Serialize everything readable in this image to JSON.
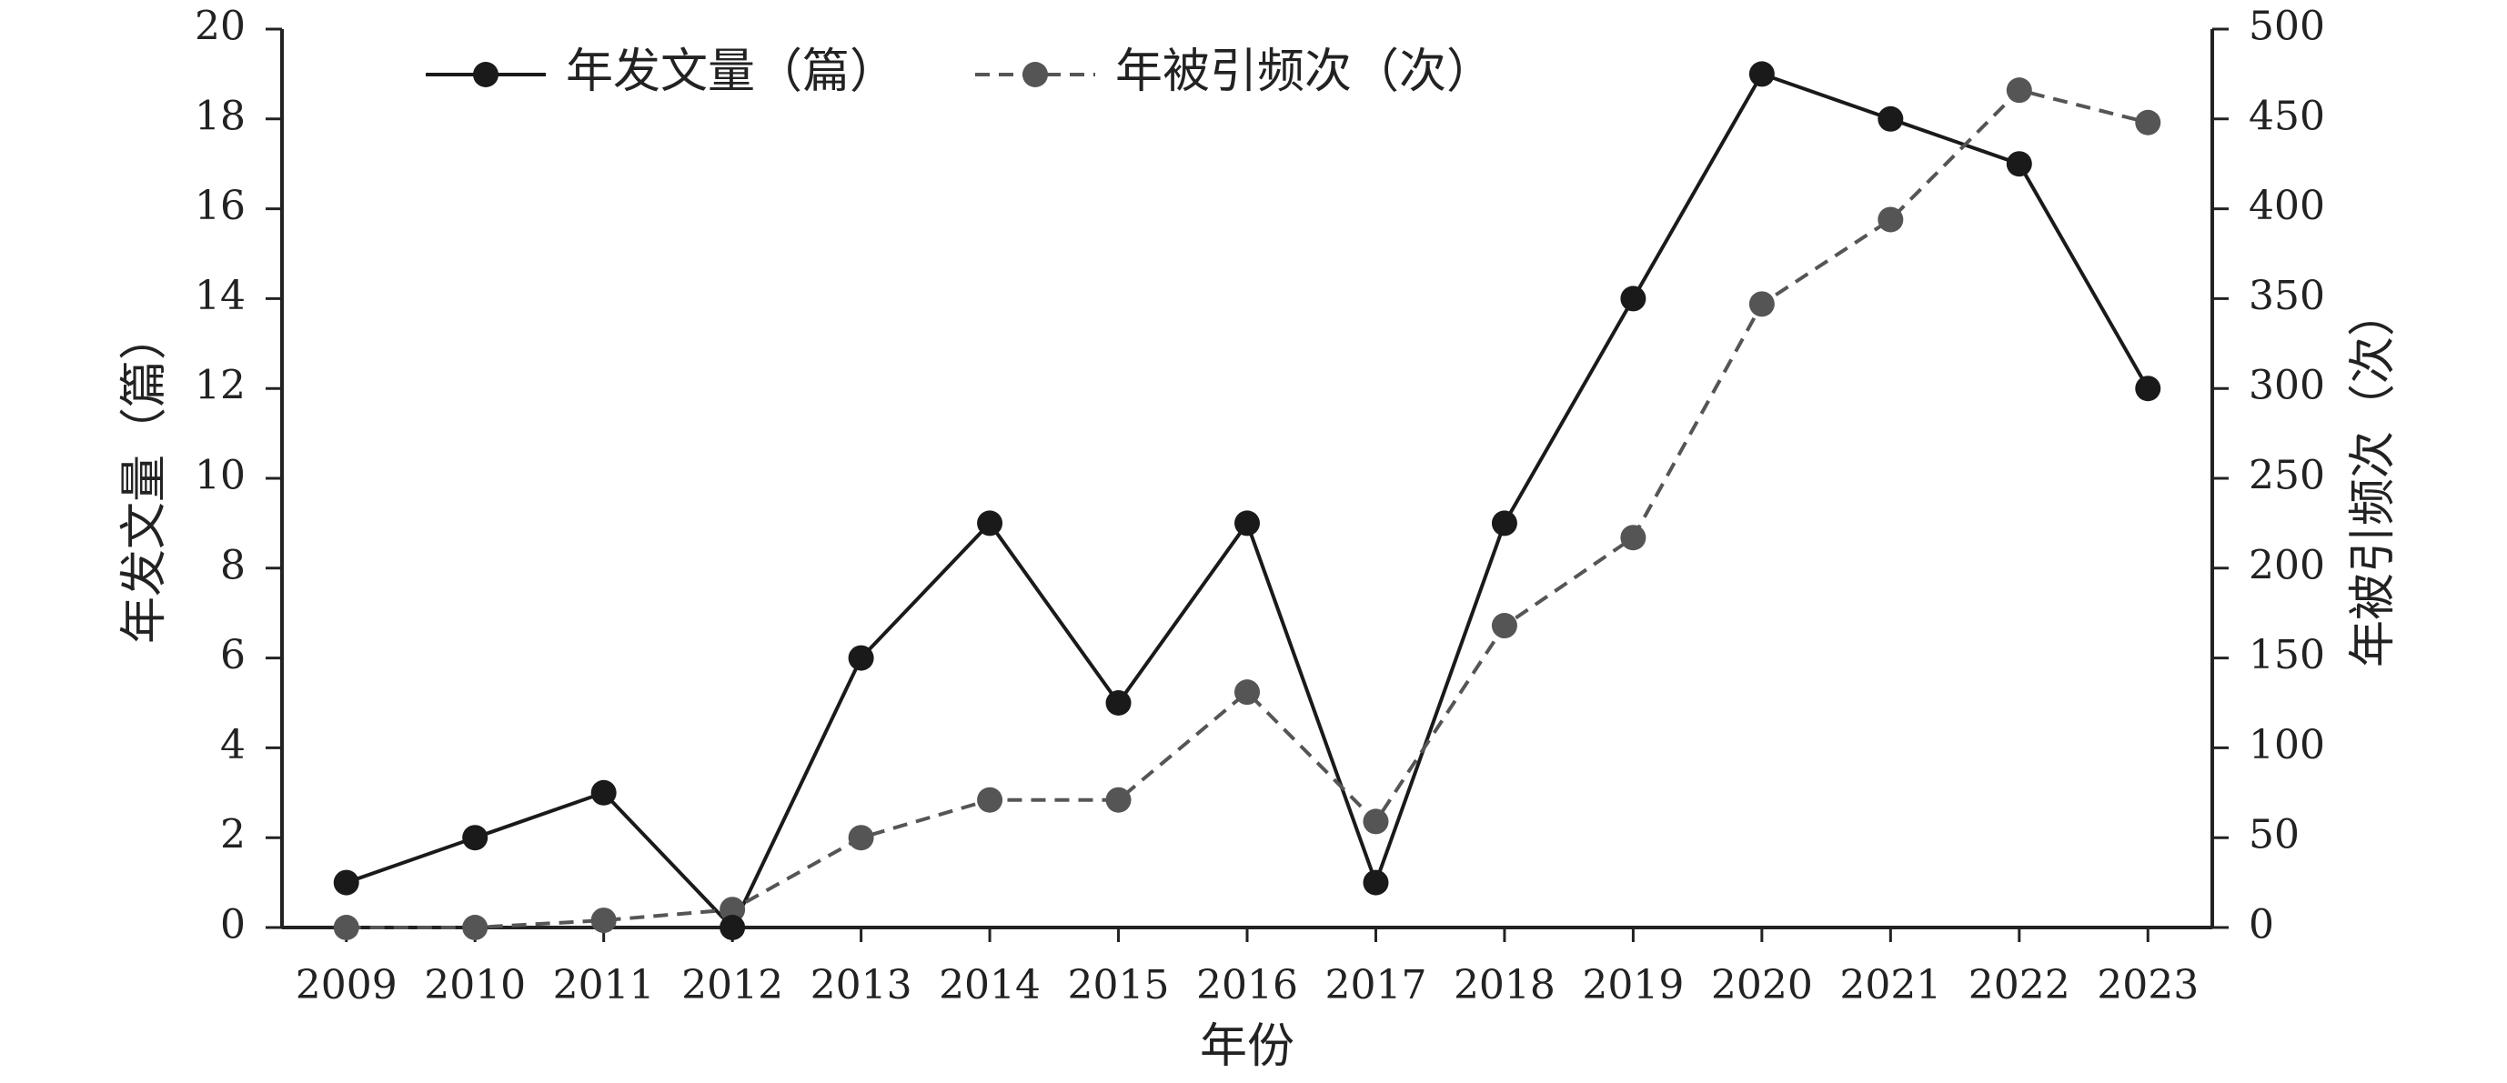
{
  "chart_data": {
    "type": "line",
    "x": [
      "2009",
      "2010",
      "2011",
      "2012",
      "2013",
      "2014",
      "2015",
      "2016",
      "2017",
      "2018",
      "2019",
      "2020",
      "2021",
      "2022",
      "2023"
    ],
    "series": [
      {
        "name": "年发文量（篇）",
        "axis": "left",
        "style": "solid",
        "color": "#1a1a1a",
        "values": [
          1,
          2,
          3,
          0,
          6,
          9,
          5,
          9,
          1,
          9,
          14,
          19,
          18,
          17,
          12
        ]
      },
      {
        "name": "年被引频次（次）",
        "axis": "right",
        "style": "dashed",
        "color": "#555555",
        "values": [
          0,
          0,
          4,
          10,
          50,
          71,
          71,
          131,
          59,
          168,
          217,
          347,
          394,
          466,
          448
        ]
      }
    ],
    "xlabel": "年份",
    "ylabel_left": "年发文量（篇）",
    "ylabel_right": "年被引频次（次）",
    "ylim_left": [
      0,
      20
    ],
    "ylim_right": [
      0,
      500
    ],
    "yticks_left": [
      "0",
      "2",
      "4",
      "6",
      "8",
      "10",
      "12",
      "14",
      "16",
      "18",
      "20"
    ],
    "yticks_right": [
      "0",
      "50",
      "100",
      "150",
      "200",
      "250",
      "300",
      "350",
      "400",
      "450",
      "500"
    ],
    "grid": false,
    "legend_position": "top-left"
  }
}
